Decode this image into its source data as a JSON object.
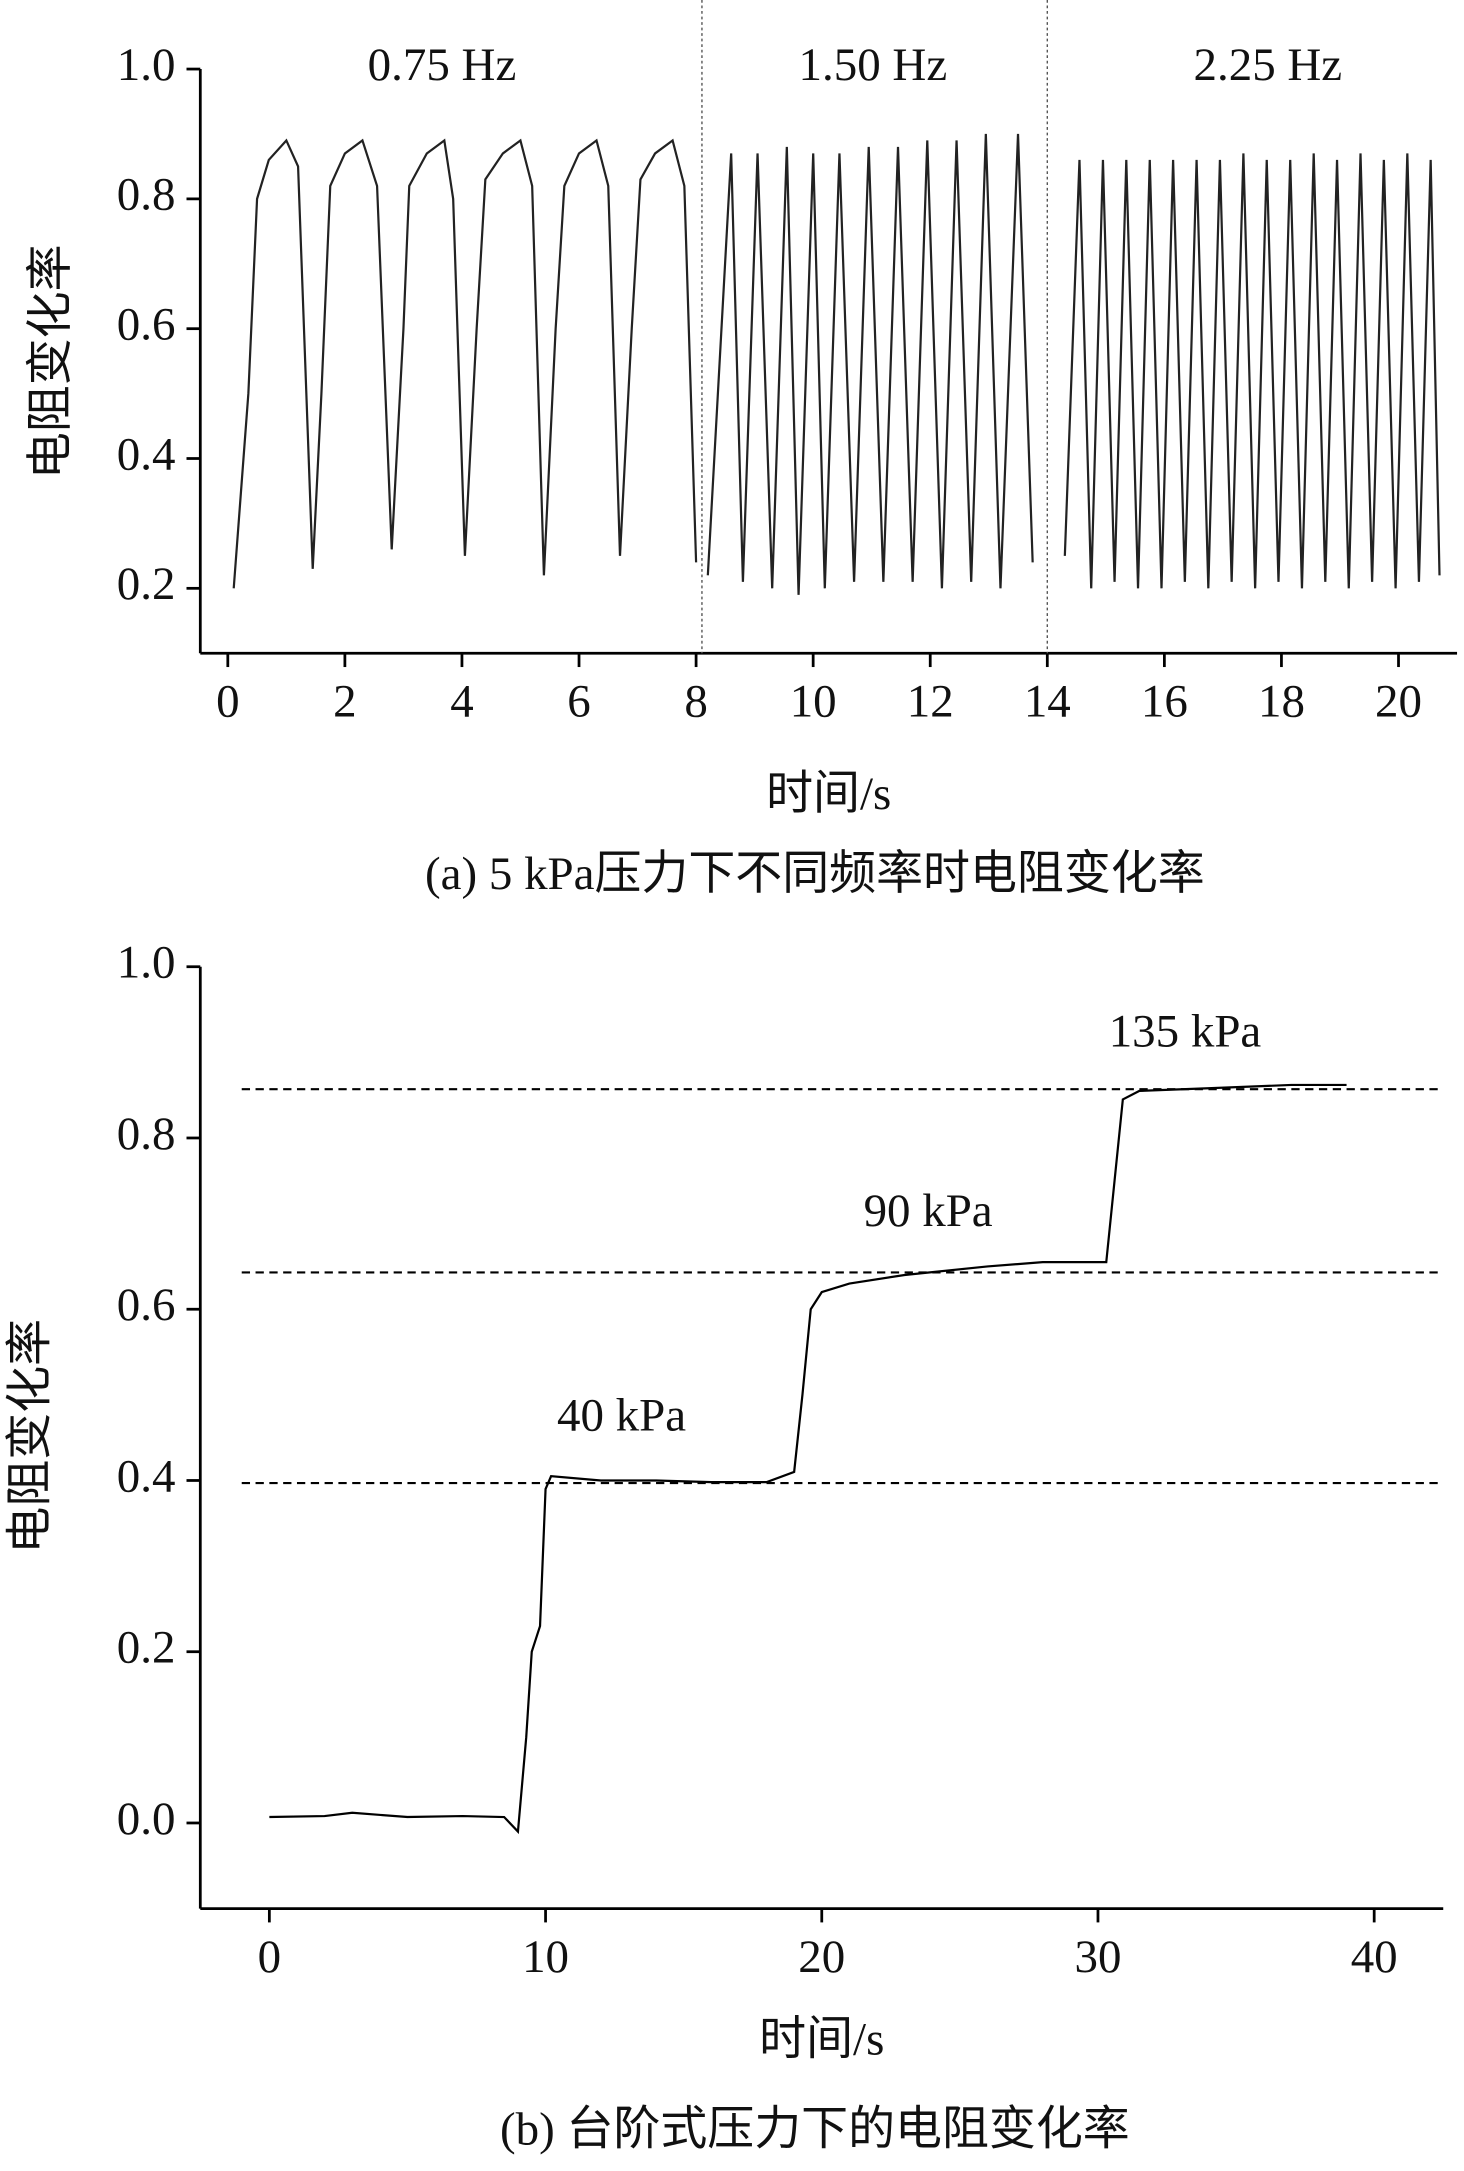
{
  "chart_data": [
    {
      "type": "line",
      "annotations": [
        "0.75 Hz",
        "1.50 Hz",
        "2.25 Hz"
      ],
      "xlabel": "时间/s",
      "ylabel": "电阻变化率",
      "caption": "(a) 5 kPa压力下不同频率时电阻变化率",
      "xlim": [
        -0.47,
        21
      ],
      "ylim": [
        0.1,
        1.0
      ],
      "xticks": [
        0,
        2,
        4,
        6,
        8,
        10,
        12,
        14,
        16,
        18,
        20
      ],
      "yticks": [
        0.2,
        0.4,
        0.6,
        0.8,
        {
          "value": 1,
          "label": "1.0"
        }
      ],
      "separators": [
        8.1,
        14.0
      ],
      "series": [
        {
          "color": "#222222",
          "x": [
            0.1,
            0.35,
            0.5,
            0.7,
            1.0,
            1.2,
            1.45,
            1.6,
            1.75,
            2.0,
            2.3,
            2.55,
            2.8,
            3.0,
            3.1,
            3.4,
            3.7,
            3.85,
            4.05,
            4.25,
            4.4,
            4.7,
            5.0,
            5.2,
            5.4,
            5.6,
            5.75,
            6.0,
            6.3,
            6.5,
            6.7,
            6.9,
            7.05,
            7.3,
            7.6,
            7.8,
            8.0,
            null,
            8.2,
            8.6,
            8.8,
            9.05,
            9.3,
            9.55,
            9.75,
            10.0,
            10.2,
            10.45,
            10.7,
            10.95,
            11.2,
            11.45,
            11.7,
            11.95,
            12.2,
            12.45,
            12.7,
            12.95,
            13.2,
            13.5,
            13.75,
            null,
            14.3,
            14.55,
            14.75,
            14.95,
            15.15,
            15.35,
            15.55,
            15.75,
            15.95,
            16.15,
            16.35,
            16.55,
            16.75,
            16.95,
            17.15,
            17.35,
            17.55,
            17.75,
            17.95,
            18.15,
            18.35,
            18.55,
            18.75,
            18.95,
            19.15,
            19.35,
            19.55,
            19.75,
            19.95,
            20.15,
            20.35,
            20.55,
            20.7
          ],
          "values": [
            0.2,
            0.5,
            0.8,
            0.86,
            0.89,
            0.85,
            0.23,
            0.5,
            0.82,
            0.87,
            0.89,
            0.82,
            0.26,
            0.6,
            0.82,
            0.87,
            0.89,
            0.8,
            0.25,
            0.6,
            0.83,
            0.87,
            0.89,
            0.82,
            0.22,
            0.6,
            0.82,
            0.87,
            0.89,
            0.82,
            0.25,
            0.6,
            0.83,
            0.87,
            0.89,
            0.82,
            0.24,
            null,
            0.22,
            0.87,
            0.21,
            0.87,
            0.2,
            0.88,
            0.19,
            0.87,
            0.2,
            0.87,
            0.21,
            0.88,
            0.21,
            0.88,
            0.21,
            0.89,
            0.2,
            0.89,
            0.21,
            0.9,
            0.2,
            0.9,
            0.24,
            null,
            0.25,
            0.86,
            0.2,
            0.86,
            0.21,
            0.86,
            0.2,
            0.86,
            0.2,
            0.86,
            0.21,
            0.86,
            0.2,
            0.86,
            0.21,
            0.87,
            0.2,
            0.86,
            0.21,
            0.86,
            0.2,
            0.87,
            0.21,
            0.86,
            0.2,
            0.87,
            0.21,
            0.86,
            0.2,
            0.87,
            0.21,
            0.86,
            0.22
          ]
        }
      ]
    },
    {
      "type": "line",
      "annotations": [
        "40 kPa",
        "90 kPa",
        "135 kPa"
      ],
      "xlabel": "时间/s",
      "ylabel": "电阻变化率",
      "caption": "(b) 台阶式压力下的电阻变化率",
      "xlim": [
        -2.5,
        42.5
      ],
      "ylim": [
        -0.1,
        1.0
      ],
      "xticks": [
        0,
        10,
        20,
        30,
        40
      ],
      "yticks": [
        {
          "value": 0,
          "label": "0.0"
        },
        0.2,
        0.4,
        0.6,
        0.8,
        {
          "value": 1,
          "label": "1.0"
        }
      ],
      "reference_lines": [
        0.397,
        0.643,
        0.857
      ],
      "series": [
        {
          "color": "#000000",
          "x": [
            0,
            2,
            3,
            5,
            7,
            8.5,
            9,
            9.3,
            9.5,
            9.8,
            10,
            10.2,
            12,
            14,
            16,
            18,
            19,
            19.3,
            19.6,
            20,
            21,
            23,
            26,
            28,
            30.3,
            30.6,
            30.9,
            31.5,
            34,
            37,
            39
          ],
          "values": [
            0.007,
            0.008,
            0.012,
            0.007,
            0.008,
            0.007,
            -0.01,
            0.1,
            0.2,
            0.23,
            0.39,
            0.405,
            0.4,
            0.4,
            0.398,
            0.398,
            0.41,
            0.5,
            0.6,
            0.62,
            0.63,
            0.64,
            0.65,
            0.655,
            0.655,
            0.75,
            0.845,
            0.855,
            0.858,
            0.862,
            0.862
          ]
        }
      ]
    }
  ]
}
